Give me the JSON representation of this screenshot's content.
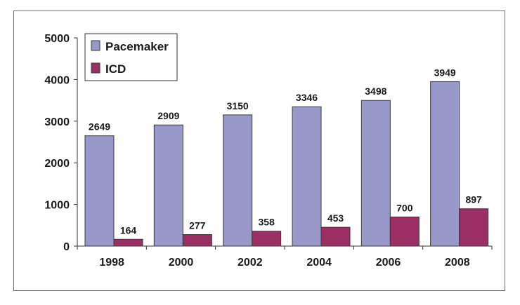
{
  "chart_data": {
    "type": "bar",
    "title": "",
    "xlabel": "",
    "ylabel": "",
    "categories": [
      "1998",
      "2000",
      "2002",
      "2004",
      "2006",
      "2008"
    ],
    "series": [
      {
        "name": "Pacemaker",
        "values": [
          2649,
          2909,
          3150,
          3346,
          3498,
          3949
        ],
        "color": "#9899c9"
      },
      {
        "name": "ICD",
        "values": [
          164,
          277,
          358,
          453,
          700,
          897
        ],
        "color": "#9b2f64"
      }
    ],
    "ylim": [
      0,
      5000
    ],
    "yticks": [
      0,
      1000,
      2000,
      3000,
      4000,
      5000
    ],
    "grid": false,
    "legend_position": "top-left",
    "data_labels": true
  }
}
